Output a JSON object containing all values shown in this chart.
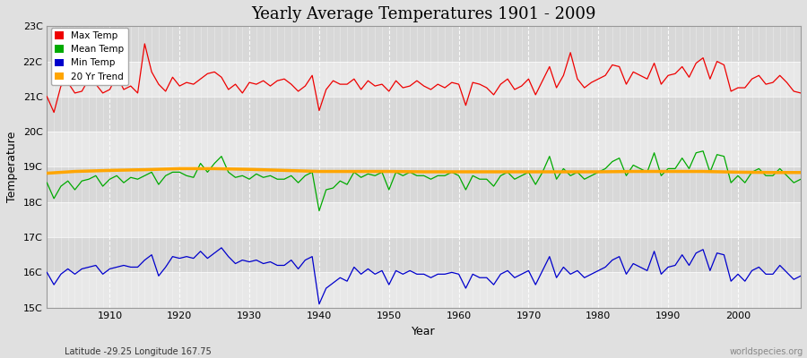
{
  "title": "Yearly Average Temperatures 1901 - 2009",
  "xlabel": "Year",
  "ylabel": "Temperature",
  "subtitle_left": "Latitude -29.25 Longitude 167.75",
  "subtitle_right": "worldspecies.org",
  "years": [
    1901,
    1902,
    1903,
    1904,
    1905,
    1906,
    1907,
    1908,
    1909,
    1910,
    1911,
    1912,
    1913,
    1914,
    1915,
    1916,
    1917,
    1918,
    1919,
    1920,
    1921,
    1922,
    1923,
    1924,
    1925,
    1926,
    1927,
    1928,
    1929,
    1930,
    1931,
    1932,
    1933,
    1934,
    1935,
    1936,
    1937,
    1938,
    1939,
    1940,
    1941,
    1942,
    1943,
    1944,
    1945,
    1946,
    1947,
    1948,
    1949,
    1950,
    1951,
    1952,
    1953,
    1954,
    1955,
    1956,
    1957,
    1958,
    1959,
    1960,
    1961,
    1962,
    1963,
    1964,
    1965,
    1966,
    1967,
    1968,
    1969,
    1970,
    1971,
    1972,
    1973,
    1974,
    1975,
    1976,
    1977,
    1978,
    1979,
    1980,
    1981,
    1982,
    1983,
    1984,
    1985,
    1986,
    1987,
    1988,
    1989,
    1990,
    1991,
    1992,
    1993,
    1994,
    1995,
    1996,
    1997,
    1998,
    1999,
    2000,
    2001,
    2002,
    2003,
    2004,
    2005,
    2006,
    2007,
    2008,
    2009
  ],
  "max_temp": [
    21.0,
    20.55,
    21.3,
    21.4,
    21.1,
    21.15,
    21.5,
    21.35,
    21.1,
    21.2,
    21.6,
    21.2,
    21.3,
    21.1,
    22.5,
    21.7,
    21.35,
    21.15,
    21.55,
    21.3,
    21.4,
    21.35,
    21.5,
    21.65,
    21.7,
    21.55,
    21.2,
    21.35,
    21.1,
    21.4,
    21.35,
    21.45,
    21.3,
    21.45,
    21.5,
    21.35,
    21.15,
    21.3,
    21.6,
    20.6,
    21.2,
    21.45,
    21.35,
    21.35,
    21.5,
    21.2,
    21.45,
    21.3,
    21.35,
    21.15,
    21.45,
    21.25,
    21.3,
    21.45,
    21.3,
    21.2,
    21.35,
    21.25,
    21.4,
    21.35,
    20.75,
    21.4,
    21.35,
    21.25,
    21.05,
    21.35,
    21.5,
    21.2,
    21.3,
    21.5,
    21.05,
    21.45,
    21.85,
    21.25,
    21.6,
    22.25,
    21.5,
    21.25,
    21.4,
    21.5,
    21.6,
    21.9,
    21.85,
    21.35,
    21.7,
    21.6,
    21.5,
    21.95,
    21.35,
    21.6,
    21.65,
    21.85,
    21.55,
    21.95,
    22.1,
    21.5,
    22.0,
    21.9,
    21.15,
    21.25,
    21.25,
    21.5,
    21.6,
    21.35,
    21.4,
    21.6,
    21.4,
    21.15,
    21.1
  ],
  "mean_temp": [
    18.55,
    18.1,
    18.45,
    18.6,
    18.35,
    18.6,
    18.65,
    18.75,
    18.45,
    18.65,
    18.75,
    18.55,
    18.7,
    18.65,
    18.75,
    18.85,
    18.5,
    18.75,
    18.85,
    18.85,
    18.75,
    18.7,
    19.1,
    18.85,
    19.1,
    19.3,
    18.85,
    18.7,
    18.75,
    18.65,
    18.8,
    18.7,
    18.75,
    18.65,
    18.65,
    18.75,
    18.55,
    18.75,
    18.85,
    17.75,
    18.35,
    18.4,
    18.6,
    18.5,
    18.85,
    18.7,
    18.8,
    18.75,
    18.85,
    18.35,
    18.85,
    18.75,
    18.85,
    18.75,
    18.75,
    18.65,
    18.75,
    18.75,
    18.85,
    18.75,
    18.35,
    18.75,
    18.65,
    18.65,
    18.45,
    18.75,
    18.85,
    18.65,
    18.75,
    18.85,
    18.5,
    18.85,
    19.3,
    18.65,
    18.95,
    18.75,
    18.85,
    18.65,
    18.75,
    18.85,
    18.95,
    19.15,
    19.25,
    18.75,
    19.05,
    18.95,
    18.85,
    19.4,
    18.75,
    18.95,
    18.95,
    19.25,
    18.95,
    19.4,
    19.45,
    18.85,
    19.35,
    19.3,
    18.55,
    18.75,
    18.55,
    18.85,
    18.95,
    18.75,
    18.75,
    18.95,
    18.75,
    18.55,
    18.65
  ],
  "min_temp": [
    16.0,
    15.65,
    15.95,
    16.1,
    15.95,
    16.1,
    16.15,
    16.2,
    15.95,
    16.1,
    16.15,
    16.2,
    16.15,
    16.15,
    16.35,
    16.5,
    15.9,
    16.15,
    16.45,
    16.4,
    16.45,
    16.4,
    16.6,
    16.4,
    16.55,
    16.7,
    16.45,
    16.25,
    16.35,
    16.3,
    16.35,
    16.25,
    16.3,
    16.2,
    16.2,
    16.35,
    16.1,
    16.35,
    16.45,
    15.1,
    15.55,
    15.7,
    15.85,
    15.75,
    16.15,
    15.95,
    16.1,
    15.95,
    16.05,
    15.65,
    16.05,
    15.95,
    16.05,
    15.95,
    15.95,
    15.85,
    15.95,
    15.95,
    16.0,
    15.95,
    15.55,
    15.95,
    15.85,
    15.85,
    15.65,
    15.95,
    16.05,
    15.85,
    15.95,
    16.05,
    15.65,
    16.05,
    16.45,
    15.85,
    16.15,
    15.95,
    16.05,
    15.85,
    15.95,
    16.05,
    16.15,
    16.35,
    16.45,
    15.95,
    16.25,
    16.15,
    16.05,
    16.6,
    15.95,
    16.15,
    16.2,
    16.5,
    16.2,
    16.55,
    16.65,
    16.05,
    16.55,
    16.5,
    15.75,
    15.95,
    15.75,
    16.05,
    16.15,
    15.95,
    15.95,
    16.2,
    16.0,
    15.8,
    15.9
  ],
  "trend_years_x": [
    1901,
    1905,
    1910,
    1915,
    1920,
    1925,
    1930,
    1935,
    1940,
    1945,
    1950,
    1955,
    1960,
    1965,
    1970,
    1975,
    1980,
    1985,
    1990,
    1995,
    2000,
    2005,
    2009
  ],
  "trend_values": [
    18.82,
    18.87,
    18.9,
    18.92,
    18.95,
    18.95,
    18.93,
    18.9,
    18.87,
    18.87,
    18.87,
    18.86,
    18.86,
    18.86,
    18.86,
    18.86,
    18.86,
    18.87,
    18.87,
    18.87,
    18.85,
    18.84,
    18.84
  ],
  "bg_color": "#e0e0e0",
  "plot_bg_color_light": "#e8e8e8",
  "plot_bg_color_dark": "#d8d8d8",
  "max_color": "#ee0000",
  "mean_color": "#00aa00",
  "min_color": "#0000cc",
  "trend_color": "#ffa500",
  "grid_color": "#ffffff",
  "ylim": [
    15.0,
    23.0
  ],
  "yticks": [
    15,
    16,
    17,
    18,
    19,
    20,
    21,
    22,
    23
  ],
  "ytick_labels": [
    "15C",
    "16C",
    "17C",
    "18C",
    "19C",
    "20C",
    "21C",
    "22C",
    "23C"
  ],
  "xtick_major": [
    1910,
    1920,
    1930,
    1940,
    1950,
    1960,
    1970,
    1980,
    1990,
    2000
  ],
  "xlim": [
    1901,
    2009
  ]
}
